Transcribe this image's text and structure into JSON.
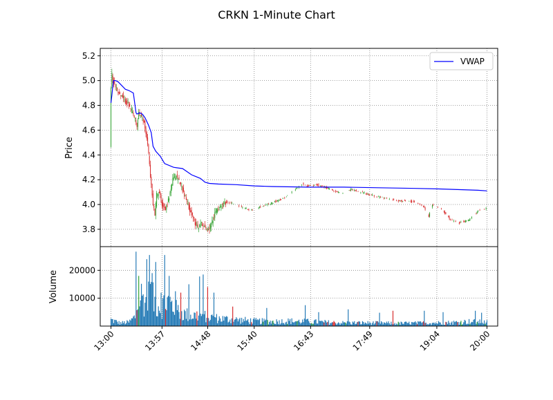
{
  "chart_data": {
    "type": "candlestick",
    "title": "CRKN 1-Minute Chart",
    "legend": {
      "placement": "top-right",
      "entries": [
        "VWAP"
      ]
    },
    "grid": true,
    "grid_style": "dotted",
    "colors": {
      "up": "#2ca02c",
      "down": "#d62728",
      "vwap": "#0000ff",
      "volume": "#1f77b4",
      "grid": "#808080"
    },
    "price_panel": {
      "ylabel": "Price",
      "ylim": [
        3.66,
        5.26
      ],
      "yticks": [
        3.8,
        4.0,
        4.2,
        4.4,
        4.6,
        4.8,
        5.0,
        5.2
      ],
      "ytick_labels": [
        "3.8",
        "4.0",
        "4.2",
        "4.4",
        "4.6",
        "4.8",
        "5.0",
        "5.2"
      ]
    },
    "volume_panel": {
      "ylabel": "Volume",
      "ylim": [
        0,
        28500
      ],
      "yticks": [
        10000,
        20000
      ],
      "ytick_labels": [
        "10000",
        "20000"
      ]
    },
    "x": {
      "range_minutes": [
        -12,
        432
      ],
      "tick_minutes": [
        0,
        57,
        108,
        160,
        223,
        289,
        364,
        420
      ],
      "tick_labels": [
        "13:00",
        "13:57",
        "14:48",
        "15:40",
        "16:43",
        "17:49",
        "19:04",
        "20:00"
      ]
    },
    "vwap": {
      "name": "VWAP",
      "x": [
        0,
        1,
        2,
        3,
        5,
        8,
        12,
        16,
        20,
        25,
        28,
        29,
        32,
        35,
        38,
        42,
        45,
        47,
        50,
        55,
        60,
        70,
        80,
        90,
        100,
        105,
        110,
        120,
        140,
        160,
        180,
        220,
        260,
        300,
        340,
        370,
        390,
        410,
        420
      ],
      "y": [
        4.82,
        4.88,
        4.95,
        5.0,
        5.0,
        4.99,
        4.96,
        4.93,
        4.92,
        4.9,
        4.74,
        4.73,
        4.74,
        4.73,
        4.7,
        4.64,
        4.58,
        4.47,
        4.43,
        4.39,
        4.33,
        4.3,
        4.29,
        4.24,
        4.21,
        4.18,
        4.17,
        4.165,
        4.16,
        4.15,
        4.145,
        4.14,
        4.14,
        4.135,
        4.13,
        4.125,
        4.12,
        4.115,
        4.11
      ]
    },
    "price_anchors": {
      "x": [
        0,
        1,
        2,
        3,
        5,
        8,
        12,
        16,
        20,
        25,
        28,
        30,
        32,
        35,
        38,
        40,
        42,
        44,
        46,
        48,
        50,
        52,
        55,
        58,
        62,
        66,
        70,
        74,
        78,
        82,
        86,
        90,
        94,
        98,
        102,
        106,
        110,
        114,
        118,
        122,
        126,
        130,
        140,
        150,
        160,
        170,
        180,
        190,
        200,
        210,
        215,
        220,
        230,
        240,
        250,
        260,
        270,
        280,
        290,
        300,
        310,
        320,
        330,
        340,
        350,
        356,
        360,
        370,
        380,
        390,
        400,
        410,
        415,
        420
      ],
      "y": [
        4.45,
        4.95,
        5.05,
        5.0,
        4.98,
        4.92,
        4.88,
        4.84,
        4.81,
        4.74,
        4.68,
        4.62,
        4.75,
        4.7,
        4.66,
        4.58,
        4.48,
        4.33,
        4.15,
        4.0,
        3.92,
        4.08,
        4.1,
        4.0,
        3.96,
        4.06,
        4.2,
        4.23,
        4.18,
        4.1,
        4.02,
        3.94,
        3.86,
        3.82,
        3.85,
        3.82,
        3.8,
        3.86,
        3.94,
        3.98,
        4.0,
        4.02,
        4.0,
        3.97,
        3.95,
        3.99,
        4.01,
        4.04,
        4.08,
        4.14,
        4.17,
        4.15,
        4.16,
        4.14,
        4.11,
        4.09,
        4.12,
        4.1,
        4.08,
        4.06,
        4.05,
        4.03,
        4.03,
        4.02,
        3.99,
        3.9,
        4.0,
        3.97,
        3.88,
        3.85,
        3.87,
        3.94,
        3.96,
        3.97
      ]
    },
    "volume_anchors": {
      "x": [
        0,
        10,
        20,
        28,
        30,
        34,
        40,
        44,
        46,
        50,
        55,
        60,
        65,
        70,
        80,
        90,
        100,
        110,
        120,
        140,
        160,
        180,
        200,
        220,
        240,
        260,
        280,
        300,
        320,
        340,
        360,
        380,
        400,
        420
      ],
      "y": [
        2500,
        1200,
        1500,
        4000,
        10000,
        12000,
        9000,
        14000,
        11000,
        9000,
        8000,
        9000,
        10000,
        7000,
        5000,
        4000,
        4500,
        3500,
        3000,
        2500,
        2000,
        1800,
        2000,
        1800,
        1500,
        1300,
        1300,
        1200,
        1100,
        1200,
        1300,
        1400,
        1800,
        1500
      ]
    },
    "volume_spikes": {
      "x": [
        28,
        31,
        40,
        43,
        46,
        50,
        56,
        60,
        65,
        72,
        78,
        87,
        99,
        103,
        108,
        115,
        136,
        174,
        217,
        232,
        265,
        300,
        315,
        350,
        371,
        407,
        414
      ],
      "y": [
        26700,
        18000,
        24000,
        25500,
        19000,
        23000,
        12000,
        25500,
        18000,
        12500,
        12000,
        15000,
        17800,
        18500,
        14000,
        12000,
        7000,
        6500,
        7500,
        5000,
        6000,
        4800,
        5500,
        5500,
        5000,
        5500,
        4800
      ]
    }
  }
}
